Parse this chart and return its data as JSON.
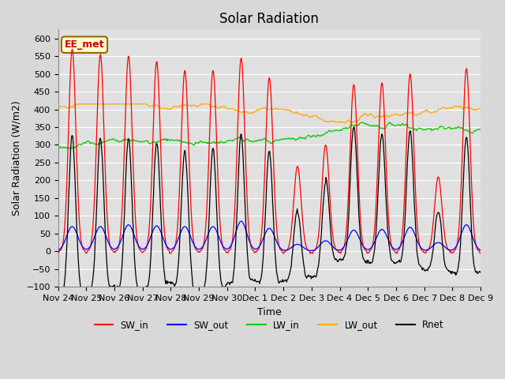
{
  "title": "Solar Radiation",
  "ylabel": "Solar Radiation (W/m2)",
  "xlabel": "Time",
  "ylim": [
    -100,
    625
  ],
  "yticks": [
    -100,
    -50,
    0,
    50,
    100,
    150,
    200,
    250,
    300,
    350,
    400,
    450,
    500,
    550,
    600
  ],
  "xtick_labels": [
    "Nov 24",
    "Nov 25",
    "Nov 26",
    "Nov 27",
    "Nov 28",
    "Nov 29",
    "Nov 30",
    "Dec 1",
    "Dec 2",
    "Dec 3",
    "Dec 4",
    "Dec 5",
    "Dec 6",
    "Dec 7",
    "Dec 8",
    "Dec 9"
  ],
  "colors": {
    "SW_in": "#ff0000",
    "SW_out": "#0000ff",
    "LW_in": "#00cc00",
    "LW_out": "#ffaa00",
    "Rnet": "#000000"
  },
  "legend_label": "EE_met",
  "legend_box_color": "#ffffcc",
  "legend_box_border": "#996600",
  "background_color": "#e0e0e0",
  "grid_color": "#ffffff",
  "title_fontsize": 12,
  "label_fontsize": 9,
  "tick_fontsize": 8,
  "peaks_SW_in": [
    570,
    555,
    550,
    535,
    510,
    510,
    545,
    490,
    240,
    300,
    470,
    475,
    500,
    210,
    515
  ],
  "peaks_SW_out": [
    70,
    70,
    75,
    72,
    70,
    70,
    85,
    65,
    20,
    30,
    60,
    62,
    68,
    25,
    75
  ],
  "lw_in_base": 290,
  "lw_out_base": 355,
  "n_days": 15
}
